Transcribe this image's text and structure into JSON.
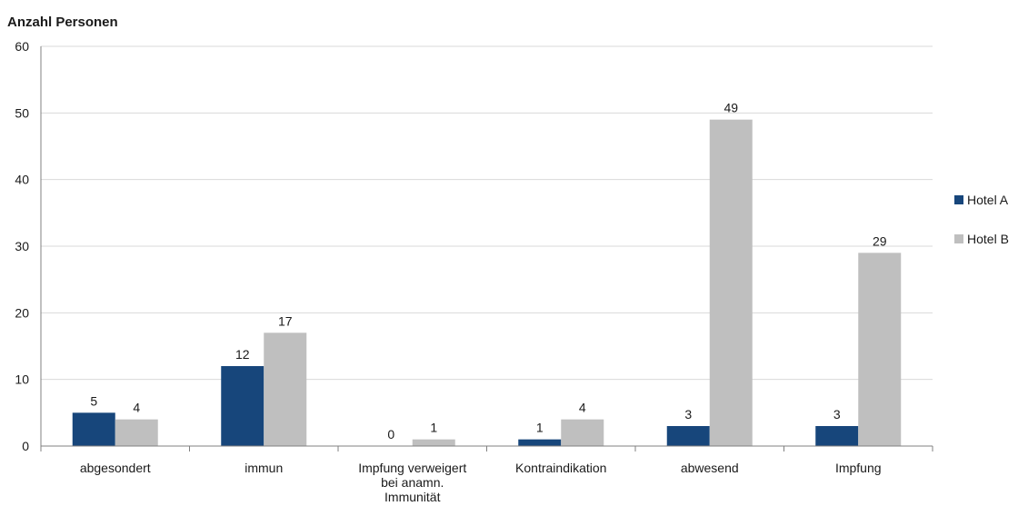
{
  "chart_data": {
    "type": "bar",
    "title": "",
    "ylabel": "Anzahl Personen",
    "xlabel": "",
    "ylim": [
      0,
      60
    ],
    "yticks": [
      0,
      10,
      20,
      30,
      40,
      50,
      60
    ],
    "grid": true,
    "legend_position": "right",
    "categories": [
      [
        "abgesondert"
      ],
      [
        "immun"
      ],
      [
        "Impfung verweigert",
        "bei anamn.",
        "Immunität"
      ],
      [
        "Kontraindikation"
      ],
      [
        "abwesend"
      ],
      [
        "Impfung"
      ]
    ],
    "series": [
      {
        "name": "Hotel A",
        "color": "#17467b",
        "values": [
          5,
          12,
          0,
          1,
          3,
          3
        ]
      },
      {
        "name": "Hotel B",
        "color": "#bfbfbf",
        "values": [
          4,
          17,
          1,
          4,
          49,
          29
        ]
      }
    ]
  }
}
